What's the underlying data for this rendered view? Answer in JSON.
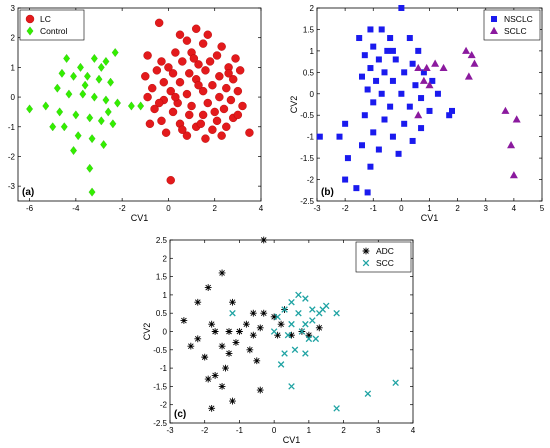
{
  "chart_data": [
    {
      "type": "scatter",
      "panel_label": "(a)",
      "xlabel": "CV1",
      "ylabel": "CV2",
      "xlim": [
        -6.5,
        4
      ],
      "ylim": [
        -3.5,
        3
      ],
      "xticks": [
        -6,
        -4,
        -2,
        0,
        2,
        4
      ],
      "yticks": [
        -3,
        -2,
        -1,
        0,
        1,
        2,
        3
      ],
      "legend_position": "top-left",
      "series": [
        {
          "name": "LC",
          "marker": "circle",
          "color": "#e31a1c",
          "points": [
            [
              -0.4,
              2.5
            ],
            [
              0.1,
              -2.8
            ],
            [
              0.5,
              2.1
            ],
            [
              1.2,
              2.3
            ],
            [
              1.7,
              2.1
            ],
            [
              0.8,
              1.9
            ],
            [
              1.5,
              1.8
            ],
            [
              2.3,
              1.7
            ],
            [
              0.3,
              1.5
            ],
            [
              1.0,
              1.5
            ],
            [
              2.1,
              1.4
            ],
            [
              2.9,
              1.3
            ],
            [
              -0.9,
              1.4
            ],
            [
              -0.3,
              1.2
            ],
            [
              0.6,
              1.2
            ],
            [
              1.3,
              1.1
            ],
            [
              2.6,
              1.0
            ],
            [
              3.1,
              0.9
            ],
            [
              -0.5,
              0.9
            ],
            [
              0.2,
              0.8
            ],
            [
              0.9,
              0.8
            ],
            [
              1.6,
              0.9
            ],
            [
              2.2,
              0.7
            ],
            [
              2.8,
              0.6
            ],
            [
              -1.0,
              0.7
            ],
            [
              -0.2,
              0.5
            ],
            [
              0.5,
              0.5
            ],
            [
              1.2,
              0.6
            ],
            [
              1.9,
              0.4
            ],
            [
              2.5,
              0.3
            ],
            [
              3.0,
              0.2
            ],
            [
              -0.7,
              0.3
            ],
            [
              0.1,
              0.2
            ],
            [
              0.8,
              0.1
            ],
            [
              1.5,
              0.2
            ],
            [
              2.2,
              0.0
            ],
            [
              2.7,
              -0.1
            ],
            [
              -0.9,
              0.0
            ],
            [
              -0.2,
              -0.1
            ],
            [
              0.4,
              -0.2
            ],
            [
              1.0,
              -0.3
            ],
            [
              1.7,
              -0.2
            ],
            [
              2.4,
              -0.4
            ],
            [
              3.2,
              -0.3
            ],
            [
              -0.6,
              -0.4
            ],
            [
              0.2,
              -0.5
            ],
            [
              0.9,
              -0.6
            ],
            [
              1.5,
              -0.6
            ],
            [
              2.1,
              -0.8
            ],
            [
              2.8,
              -0.7
            ],
            [
              -0.3,
              -0.8
            ],
            [
              0.5,
              -0.9
            ],
            [
              1.2,
              -1.0
            ],
            [
              1.9,
              -1.1
            ],
            [
              2.5,
              -1.0
            ],
            [
              3.5,
              -1.2
            ],
            [
              -0.1,
              -1.2
            ],
            [
              0.8,
              -1.3
            ],
            [
              1.6,
              -1.4
            ],
            [
              2.3,
              -1.3
            ],
            [
              0.3,
              0.0
            ],
            [
              1.3,
              0.4
            ],
            [
              2.0,
              -0.5
            ],
            [
              0.6,
              -1.1
            ],
            [
              1.1,
              1.3
            ],
            [
              -0.4,
              -0.2
            ],
            [
              2.6,
              0.8
            ],
            [
              1.8,
              1.2
            ],
            [
              0.0,
              1.0
            ],
            [
              1.4,
              -0.9
            ],
            [
              3.0,
              -0.6
            ],
            [
              -0.8,
              -0.9
            ]
          ]
        },
        {
          "name": "Control",
          "marker": "diamond",
          "color": "#33ee00",
          "points": [
            [
              -2.3,
              1.5
            ],
            [
              -2.7,
              1.2
            ],
            [
              -3.2,
              1.3
            ],
            [
              -3.8,
              1.0
            ],
            [
              -4.4,
              1.3
            ],
            [
              -4.1,
              0.7
            ],
            [
              -3.5,
              0.7
            ],
            [
              -3.0,
              0.6
            ],
            [
              -2.5,
              0.5
            ],
            [
              -4.8,
              0.3
            ],
            [
              -4.3,
              0.1
            ],
            [
              -3.7,
              0.1
            ],
            [
              -3.2,
              0.0
            ],
            [
              -2.7,
              -0.1
            ],
            [
              -2.2,
              -0.2
            ],
            [
              -1.6,
              -0.3
            ],
            [
              -1.2,
              -0.3
            ],
            [
              -6.0,
              -0.4
            ],
            [
              -5.3,
              -0.3
            ],
            [
              -4.7,
              -0.5
            ],
            [
              -4.0,
              -0.6
            ],
            [
              -3.4,
              -0.7
            ],
            [
              -2.9,
              -0.8
            ],
            [
              -2.4,
              -0.9
            ],
            [
              -4.5,
              -1.0
            ],
            [
              -3.9,
              -1.3
            ],
            [
              -3.3,
              -1.4
            ],
            [
              -2.8,
              -1.6
            ],
            [
              -4.1,
              -1.8
            ],
            [
              -3.4,
              -2.4
            ],
            [
              -3.3,
              -3.2
            ],
            [
              -5.0,
              -1.0
            ],
            [
              -3.6,
              0.4
            ],
            [
              -2.9,
              1.0
            ],
            [
              -4.6,
              0.8
            ],
            [
              -2.6,
              -0.5
            ]
          ]
        }
      ]
    },
    {
      "type": "scatter",
      "panel_label": "(b)",
      "xlabel": "CV1",
      "ylabel": "CV2",
      "xlim": [
        -3,
        5
      ],
      "ylim": [
        -2.5,
        2
      ],
      "xticks": [
        -3,
        -2,
        -1,
        0,
        1,
        2,
        3,
        4,
        5
      ],
      "yticks": [
        -2.5,
        -2,
        -1.5,
        -1,
        -0.5,
        0,
        0.5,
        1,
        1.5,
        2
      ],
      "legend_position": "top-right",
      "series": [
        {
          "name": "NSCLC",
          "marker": "square",
          "color": "#1a1aee",
          "points": [
            [
              0.0,
              2.0
            ],
            [
              -1.1,
              1.5
            ],
            [
              -0.7,
              1.5
            ],
            [
              -0.4,
              1.3
            ],
            [
              -1.5,
              1.3
            ],
            [
              0.3,
              1.3
            ],
            [
              -1.0,
              1.1
            ],
            [
              -0.5,
              1.0
            ],
            [
              0.6,
              1.0
            ],
            [
              -1.3,
              0.9
            ],
            [
              -0.8,
              0.8
            ],
            [
              -0.2,
              0.8
            ],
            [
              0.4,
              0.7
            ],
            [
              -1.1,
              0.6
            ],
            [
              -0.6,
              0.5
            ],
            [
              0.1,
              0.5
            ],
            [
              0.8,
              0.5
            ],
            [
              -1.4,
              0.4
            ],
            [
              -0.9,
              0.3
            ],
            [
              -0.3,
              0.3
            ],
            [
              0.5,
              0.2
            ],
            [
              1.1,
              0.3
            ],
            [
              -1.2,
              0.1
            ],
            [
              -0.7,
              0.0
            ],
            [
              0.0,
              0.0
            ],
            [
              0.7,
              -0.1
            ],
            [
              1.3,
              0.0
            ],
            [
              -1.0,
              -0.2
            ],
            [
              -0.4,
              -0.3
            ],
            [
              0.3,
              -0.3
            ],
            [
              1.0,
              -0.4
            ],
            [
              1.7,
              -0.5
            ],
            [
              -1.3,
              -0.5
            ],
            [
              -0.6,
              -0.6
            ],
            [
              0.1,
              -0.7
            ],
            [
              0.7,
              -0.8
            ],
            [
              -2.0,
              -0.7
            ],
            [
              -1.0,
              -0.9
            ],
            [
              -0.3,
              -1.0
            ],
            [
              0.4,
              -1.1
            ],
            [
              -2.9,
              -1.0
            ],
            [
              -2.2,
              -1.0
            ],
            [
              -1.4,
              -1.2
            ],
            [
              -0.8,
              -1.3
            ],
            [
              -0.1,
              -1.4
            ],
            [
              -1.9,
              -1.5
            ],
            [
              -1.1,
              -1.7
            ],
            [
              -2.0,
              -2.0
            ],
            [
              -1.6,
              -2.2
            ],
            [
              -1.2,
              -2.3
            ],
            [
              1.8,
              -0.4
            ],
            [
              -0.3,
              1.0
            ]
          ]
        },
        {
          "name": "SCLC",
          "marker": "triangle",
          "color": "#8b1a9e",
          "points": [
            [
              2.3,
              1.0
            ],
            [
              2.5,
              0.9
            ],
            [
              0.6,
              0.6
            ],
            [
              0.9,
              0.6
            ],
            [
              1.2,
              0.7
            ],
            [
              1.5,
              0.6
            ],
            [
              2.4,
              0.4
            ],
            [
              2.6,
              0.7
            ],
            [
              0.8,
              0.3
            ],
            [
              1.0,
              0.2
            ],
            [
              0.6,
              -0.5
            ],
            [
              3.7,
              -0.4
            ],
            [
              4.1,
              -0.6
            ],
            [
              3.9,
              -1.2
            ],
            [
              4.0,
              -1.9
            ]
          ]
        }
      ]
    },
    {
      "type": "scatter",
      "panel_label": "(c)",
      "xlabel": "CV1",
      "ylabel": "CV2",
      "xlim": [
        -3,
        4
      ],
      "ylim": [
        -2.5,
        2.5
      ],
      "xticks": [
        -3,
        -2,
        -1,
        0,
        1,
        2,
        3,
        4
      ],
      "yticks": [
        -2.5,
        -2,
        -1.5,
        -1,
        -0.5,
        0,
        0.5,
        1,
        1.5,
        2,
        2.5
      ],
      "legend_position": "top-right",
      "series": [
        {
          "name": "ADC",
          "marker": "asterisk",
          "color": "#000000",
          "points": [
            [
              -0.3,
              2.5
            ],
            [
              -1.5,
              1.6
            ],
            [
              -1.9,
              1.2
            ],
            [
              -1.2,
              0.8
            ],
            [
              -2.2,
              0.8
            ],
            [
              -0.6,
              0.5
            ],
            [
              -0.3,
              0.5
            ],
            [
              0.0,
              0.4
            ],
            [
              -2.6,
              0.3
            ],
            [
              -1.8,
              0.2
            ],
            [
              -0.8,
              0.2
            ],
            [
              -0.4,
              0.1
            ],
            [
              0.2,
              0.2
            ],
            [
              -1.7,
              0.0
            ],
            [
              -1.3,
              0.0
            ],
            [
              -1.0,
              0.0
            ],
            [
              -0.6,
              -0.1
            ],
            [
              0.1,
              -0.1
            ],
            [
              0.5,
              -0.1
            ],
            [
              0.8,
              0.0
            ],
            [
              1.0,
              -0.1
            ],
            [
              -1.1,
              -0.3
            ],
            [
              -1.5,
              -0.4
            ],
            [
              -2.4,
              -0.4
            ],
            [
              -0.7,
              -0.5
            ],
            [
              -1.3,
              -0.6
            ],
            [
              -2.0,
              -0.7
            ],
            [
              -1.4,
              -1.0
            ],
            [
              -1.7,
              -1.2
            ],
            [
              -1.9,
              -1.3
            ],
            [
              -1.5,
              -1.5
            ],
            [
              -1.8,
              -2.1
            ],
            [
              -1.2,
              -1.9
            ],
            [
              -0.4,
              -1.6
            ],
            [
              -0.5,
              -0.8
            ],
            [
              0.3,
              0.6
            ],
            [
              -2.2,
              -0.2
            ],
            [
              1.3,
              0.1
            ]
          ]
        },
        {
          "name": "SCC",
          "marker": "x",
          "color": "#1fa3a3",
          "points": [
            [
              -1.2,
              0.5
            ],
            [
              0.7,
              1.0
            ],
            [
              0.5,
              0.8
            ],
            [
              0.9,
              0.9
            ],
            [
              1.1,
              0.6
            ],
            [
              0.3,
              0.6
            ],
            [
              1.5,
              0.7
            ],
            [
              1.3,
              0.5
            ],
            [
              0.1,
              0.4
            ],
            [
              0.7,
              0.5
            ],
            [
              1.1,
              0.3
            ],
            [
              0.9,
              0.2
            ],
            [
              0.5,
              0.2
            ],
            [
              0.0,
              0.0
            ],
            [
              0.4,
              -0.1
            ],
            [
              1.2,
              -0.2
            ],
            [
              0.6,
              -0.5
            ],
            [
              0.9,
              -0.6
            ],
            [
              0.2,
              -0.9
            ],
            [
              1.4,
              0.6
            ],
            [
              1.8,
              0.5
            ],
            [
              1.0,
              -0.2
            ],
            [
              0.5,
              -1.5
            ],
            [
              2.7,
              -1.7
            ],
            [
              3.5,
              -1.4
            ],
            [
              1.8,
              -2.1
            ],
            [
              0.3,
              -0.6
            ],
            [
              0.8,
              0.0
            ]
          ]
        }
      ]
    }
  ]
}
